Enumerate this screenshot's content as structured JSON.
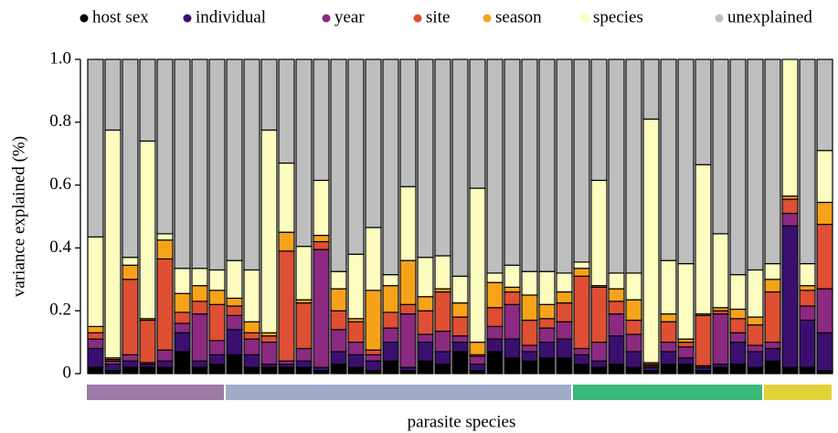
{
  "chart_data": {
    "type": "stacked_bar",
    "xlabel": "parasite species",
    "ylabel": "variance explained (%)",
    "ylim": [
      0,
      1
    ],
    "yticks": [
      0,
      0.2,
      0.4,
      0.6,
      0.8,
      {
        "value": 1,
        "label": "1.0"
      }
    ],
    "legend": "top",
    "groups": [
      {
        "color": "#9e7aa6",
        "count": 8
      },
      {
        "color": "#a0acc9",
        "count": 20
      },
      {
        "color": "#3ab97a",
        "count": 11
      },
      {
        "color": "#e0d33a",
        "count": 4
      }
    ],
    "series": [
      {
        "name": "host sex",
        "color": "#000000",
        "values": [
          0.02,
          0.01,
          0.02,
          0.02,
          0.02,
          0.07,
          0.02,
          0.03,
          0.06,
          0.02,
          0.02,
          0.02,
          0.02,
          0.01,
          0.03,
          0.02,
          0.01,
          0.04,
          0.01,
          0.04,
          0.03,
          0.07,
          0.01,
          0.07,
          0.05,
          0.04,
          0.05,
          0.05,
          0.03,
          0.02,
          0.03,
          0.02,
          0.01,
          0.03,
          0.03,
          0.01,
          0.02,
          0.03,
          0.02,
          0.04,
          0.02,
          0.02,
          0.01
        ]
      },
      {
        "name": "individual",
        "color": "#3b0f70",
        "values": [
          0.06,
          0.02,
          0.02,
          0.01,
          0.02,
          0.06,
          0.02,
          0.03,
          0.08,
          0.04,
          0.01,
          0.01,
          0.02,
          0.01,
          0.04,
          0.04,
          0.03,
          0.06,
          0.01,
          0.06,
          0.04,
          0.03,
          0.02,
          0.04,
          0.06,
          0.03,
          0.05,
          0.06,
          0.03,
          0.02,
          0.09,
          0.05,
          0.01,
          0.04,
          0.02,
          0.01,
          0.01,
          0.07,
          0.05,
          0.04,
          0.45,
          0.15,
          0.12
        ]
      },
      {
        "name": "year",
        "color": "#8c2981",
        "values": [
          0.03,
          0.01,
          0.02,
          0.005,
          0.035,
          0.03,
          0.15,
          0.045,
          0.045,
          0.05,
          0.07,
          0.01,
          0.04,
          0.375,
          0.07,
          0.04,
          0.02,
          0.045,
          0.17,
          0.025,
          0.065,
          0.02,
          0.025,
          0.04,
          0.11,
          0.02,
          0.045,
          0.055,
          0.02,
          0.06,
          0.07,
          0.055,
          0.005,
          0.03,
          0.035,
          0.005,
          0.16,
          0.03,
          0.02,
          0.02,
          0.04,
          0.045,
          0.14
        ]
      },
      {
        "name": "site",
        "color": "#de4f33",
        "values": [
          0.02,
          0.005,
          0.24,
          0.135,
          0.29,
          0.035,
          0.04,
          0.115,
          0.03,
          0.02,
          0.02,
          0.35,
          0.145,
          0.025,
          0.06,
          0.065,
          0.015,
          0.05,
          0.03,
          0.075,
          0.125,
          0.06,
          0.005,
          0.06,
          0.04,
          0.08,
          0.03,
          0.06,
          0.23,
          0.175,
          0.04,
          0.045,
          0.005,
          0.065,
          0.015,
          0.16,
          0.01,
          0.045,
          0.065,
          0.16,
          0.045,
          0.05,
          0.205
        ]
      },
      {
        "name": "season",
        "color": "#f7a31a",
        "values": [
          0.02,
          0.005,
          0.045,
          0.005,
          0.06,
          0.06,
          0.05,
          0.045,
          0.025,
          0.035,
          0.01,
          0.06,
          0.01,
          0.02,
          0.07,
          0.01,
          0.19,
          0.085,
          0.14,
          0.045,
          0.01,
          0.045,
          0.04,
          0.08,
          0.015,
          0.08,
          0.045,
          0.035,
          0.025,
          0.005,
          0.04,
          0.065,
          0.005,
          0.025,
          0.01,
          0.005,
          0.01,
          0.03,
          0.025,
          0.04,
          0.01,
          0.015,
          0.07
        ]
      },
      {
        "name": "species",
        "color": "#fcfdbf",
        "values": [
          0.285,
          0.725,
          0.025,
          0.565,
          0.02,
          0.08,
          0.055,
          0.065,
          0.12,
          0.165,
          0.645,
          0.22,
          0.17,
          0.175,
          0.055,
          0.205,
          0.2,
          0.035,
          0.235,
          0.125,
          0.105,
          0.085,
          0.49,
          0.03,
          0.07,
          0.075,
          0.105,
          0.06,
          0.02,
          0.335,
          0.05,
          0.085,
          0.775,
          0.17,
          0.24,
          0.475,
          0.235,
          0.11,
          0.15,
          0.05,
          0.435,
          0.07,
          0.165
        ]
      },
      {
        "name": "unexplained",
        "color": "#bebebe",
        "values": [
          0.565,
          0.225,
          0.63,
          0.26,
          0.555,
          0.665,
          0.665,
          0.67,
          0.64,
          0.67,
          0.225,
          0.33,
          0.595,
          0.385,
          0.675,
          0.62,
          0.535,
          0.685,
          0.405,
          0.63,
          0.625,
          0.69,
          0.41,
          0.68,
          0.655,
          0.675,
          0.675,
          0.68,
          0.645,
          0.385,
          0.68,
          0.68,
          0.19,
          0.64,
          0.65,
          0.335,
          0.555,
          0.685,
          0.67,
          0.65,
          0,
          0.65,
          0.29
        ]
      }
    ]
  }
}
